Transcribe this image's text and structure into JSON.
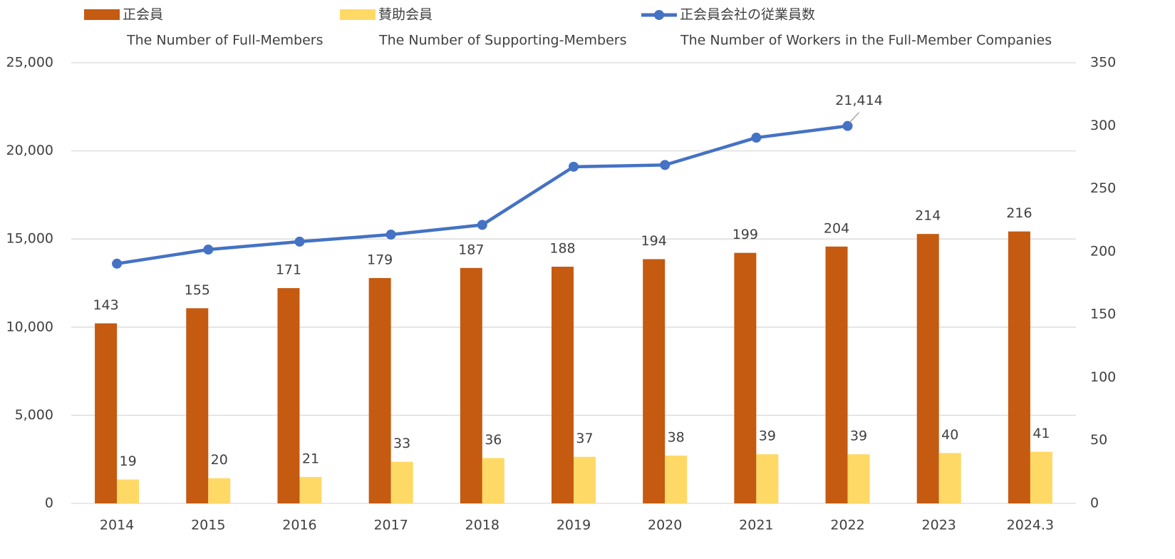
{
  "chart_data": {
    "type": "bar_line_combo",
    "categories": [
      "2014",
      "2015",
      "2016",
      "2017",
      "2018",
      "2019",
      "2020",
      "2021",
      "2022",
      "2023",
      "2024.3"
    ],
    "series": [
      {
        "name": "正会員",
        "name_en": "The Number of Full-Members",
        "type": "bar",
        "axis": "y2",
        "color": "#c55a11",
        "values": [
          143,
          155,
          171,
          179,
          187,
          188,
          194,
          199,
          204,
          214,
          216
        ]
      },
      {
        "name": "賛助会員",
        "name_en": "The Number of Supporting-Members",
        "type": "bar",
        "axis": "y2",
        "color": "#ffd966",
        "values": [
          19,
          20,
          21,
          33,
          36,
          37,
          38,
          39,
          39,
          40,
          41
        ]
      },
      {
        "name": "正会員会社の従業員数",
        "name_en": "The Number of Workers in the Full-Member Companies",
        "type": "line",
        "axis": "y",
        "color": "#4472c4",
        "values": [
          13600,
          14400,
          14850,
          15250,
          15800,
          19100,
          19200,
          20750,
          21414,
          null,
          null
        ],
        "value_labels": [
          null,
          null,
          null,
          null,
          null,
          null,
          null,
          null,
          "21,414",
          null,
          null
        ]
      }
    ],
    "ylim": [
      0,
      25000
    ],
    "yticks": [
      0,
      {
        "value": 5000,
        "label": "5,000"
      },
      {
        "value": 10000,
        "label": "10,000"
      },
      {
        "value": 15000,
        "label": "15,000"
      },
      {
        "value": 20000,
        "label": "20,000"
      },
      {
        "value": 25000,
        "label": "25,000"
      }
    ],
    "y2lim": [
      0,
      350
    ],
    "y2ticks": [
      0,
      50,
      100,
      150,
      200,
      250,
      300,
      350
    ],
    "grid": true
  }
}
